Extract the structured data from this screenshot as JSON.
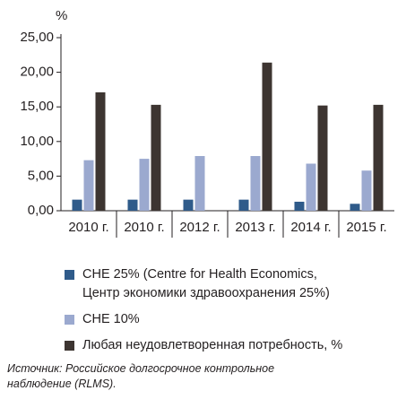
{
  "chart_data": {
    "type": "bar",
    "y_unit": "%",
    "categories": [
      "2010 г.",
      "2010 г.",
      "2012 г.",
      "2013 г.",
      "2014 г.",
      "2015 г."
    ],
    "series": [
      {
        "name": "CHE 25% (Centre for Health Economics,\nЦентр экономики здравоохранения 25%)",
        "color": "#2f5b8a",
        "values": [
          1.6,
          1.6,
          1.6,
          1.6,
          1.3,
          1.0
        ]
      },
      {
        "name": "CHE 10%",
        "color": "#9ba9cf",
        "values": [
          7.3,
          7.5,
          7.9,
          7.9,
          6.8,
          5.8
        ]
      },
      {
        "name": "Любая неудовлетворенная потребность, %",
        "color": "#3d3531",
        "values": [
          17.1,
          15.3,
          null,
          21.4,
          15.2,
          15.3
        ]
      }
    ],
    "ylim": [
      0,
      25
    ],
    "yticks": [
      {
        "value": 0,
        "label": "0,00"
      },
      {
        "value": 5,
        "label": "5,00"
      },
      {
        "value": 10,
        "label": "10,00"
      },
      {
        "value": 15,
        "label": "15,00"
      },
      {
        "value": 20,
        "label": "20,00"
      },
      {
        "value": 25,
        "label": "25,00"
      }
    ],
    "source": "Источник: Российское долгосрочное контрольное\nнаблюдение (RLMS)."
  }
}
